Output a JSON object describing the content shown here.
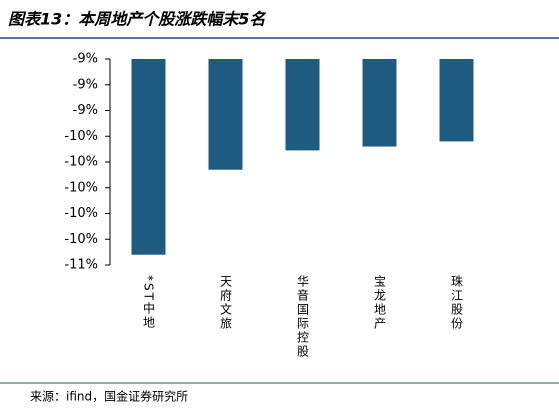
{
  "chart_data": {
    "type": "bar",
    "title": "图表13：本周地产个股涨跌幅末5名",
    "source": "来源：ifind，国金证券研究所",
    "categories": [
      "*ST中地",
      "天府文旅",
      "华音国际控股",
      "宝龙地产",
      "珠江股份"
    ],
    "values": [
      -10.52,
      -9.86,
      -9.71,
      -9.68,
      -9.64
    ],
    "color": "#1f5a80",
    "ylim": [
      -10.6,
      -9.0
    ],
    "yticks": [
      {
        "value": -9.0,
        "label": "-9%"
      },
      {
        "value": -9.2,
        "label": "-9%"
      },
      {
        "value": -9.4,
        "label": "-9%"
      },
      {
        "value": -9.6,
        "label": "-10%"
      },
      {
        "value": -9.8,
        "label": "-10%"
      },
      {
        "value": -10.0,
        "label": "-10%"
      },
      {
        "value": -10.2,
        "label": "-10%"
      },
      {
        "value": -10.4,
        "label": "-10%"
      },
      {
        "value": -10.6,
        "label": "-11%"
      }
    ],
    "grid": false
  }
}
